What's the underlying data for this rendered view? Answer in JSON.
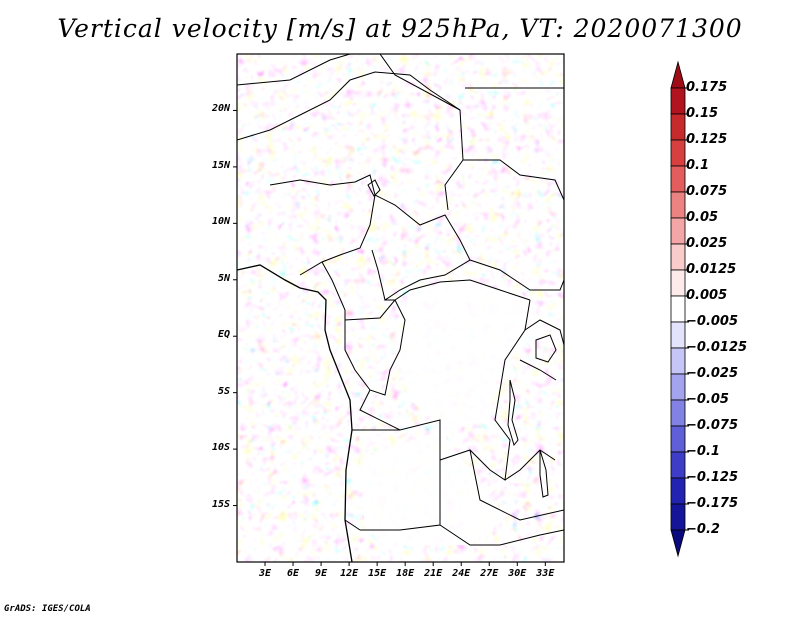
{
  "title": "Vertical velocity [m/s] at 925hPa, VT: 2020071300",
  "credit": "GrADS: IGES/COLA",
  "map": {
    "lon_range": [
      0,
      35
    ],
    "lat_range": [
      -20,
      25
    ],
    "y_ticks": [
      {
        "label": "20N",
        "lat": 20
      },
      {
        "label": "15N",
        "lat": 15
      },
      {
        "label": "10N",
        "lat": 10
      },
      {
        "label": "5N",
        "lat": 5
      },
      {
        "label": "EQ",
        "lat": 0
      },
      {
        "label": "5S",
        "lat": -5
      },
      {
        "label": "10S",
        "lat": -10
      },
      {
        "label": "15S",
        "lat": -15
      }
    ],
    "x_ticks": [
      {
        "label": "3E",
        "lon": 3
      },
      {
        "label": "6E",
        "lon": 6
      },
      {
        "label": "9E",
        "lon": 9
      },
      {
        "label": "12E",
        "lon": 12
      },
      {
        "label": "15E",
        "lon": 15
      },
      {
        "label": "18E",
        "lon": 18
      },
      {
        "label": "21E",
        "lon": 21
      },
      {
        "label": "24E",
        "lon": 24
      },
      {
        "label": "27E",
        "lon": 27
      },
      {
        "label": "30E",
        "lon": 30
      },
      {
        "label": "33E",
        "lon": 33
      }
    ]
  },
  "colorbar": {
    "levels": [
      "0.175",
      "0.15",
      "0.125",
      "0.1",
      "0.075",
      "0.05",
      "0.025",
      "0.0125",
      "0.005",
      "-0.005",
      "-0.0125",
      "-0.025",
      "-0.05",
      "-0.075",
      "-0.1",
      "-0.125",
      "-0.175",
      "-0.2"
    ],
    "colors": [
      "#9e0d17",
      "#b2141f",
      "#c62a2a",
      "#d84040",
      "#e35d5d",
      "#ec8383",
      "#f4a6a6",
      "#f9cbcb",
      "#fdeaea",
      "#ffffff",
      "#e3e3fb",
      "#c6c6f6",
      "#a4a4ee",
      "#8282e4",
      "#5f5fd8",
      "#3d3dc7",
      "#2323b2",
      "#15159a",
      "#0a0a7e"
    ]
  }
}
